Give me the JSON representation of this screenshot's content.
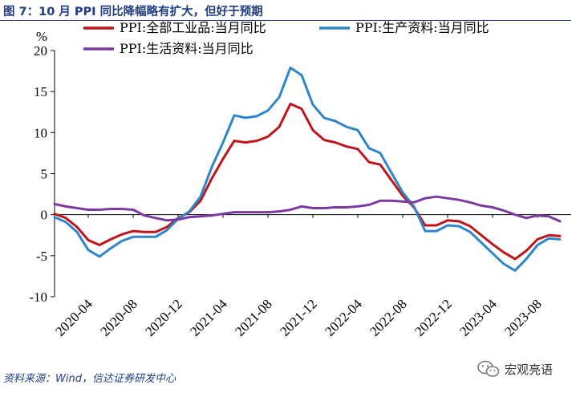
{
  "header": {
    "title": "图 7：10 月 PPI 同比降幅略有扩大，但好于预期"
  },
  "footer": {
    "source": "资料来源：Wind，信达证券研发中心",
    "watermark": "宏观亮语"
  },
  "chart_data": {
    "type": "line",
    "unit_label": "%",
    "ylim": [
      -10,
      20
    ],
    "yticks": [
      -10,
      -5,
      0,
      5,
      10,
      15,
      20
    ],
    "xlim": [
      "2020-01",
      "2023-11"
    ],
    "xticks": [
      "2020-04",
      "2020-08",
      "2020-12",
      "2021-04",
      "2021-08",
      "2021-12",
      "2022-04",
      "2022-08",
      "2022-12",
      "2023-04",
      "2023-08"
    ],
    "grid": false,
    "legend_position": "top",
    "series": [
      {
        "name": "PPI:全部工业品:当月同比",
        "color": "#c0141c",
        "x": [
          "2020-01",
          "2020-02",
          "2020-03",
          "2020-04",
          "2020-05",
          "2020-06",
          "2020-07",
          "2020-08",
          "2020-09",
          "2020-10",
          "2020-11",
          "2020-12",
          "2021-01",
          "2021-02",
          "2021-03",
          "2021-04",
          "2021-05",
          "2021-06",
          "2021-07",
          "2021-08",
          "2021-09",
          "2021-10",
          "2021-11",
          "2021-12",
          "2022-01",
          "2022-02",
          "2022-03",
          "2022-04",
          "2022-05",
          "2022-06",
          "2022-07",
          "2022-08",
          "2022-09",
          "2022-10",
          "2022-11",
          "2022-12",
          "2023-01",
          "2023-02",
          "2023-03",
          "2023-04",
          "2023-05",
          "2023-06",
          "2023-07",
          "2023-08",
          "2023-09",
          "2023-10"
        ],
        "values": [
          0.1,
          -0.4,
          -1.5,
          -3.1,
          -3.7,
          -3.0,
          -2.4,
          -2.0,
          -2.1,
          -2.1,
          -1.5,
          -0.4,
          0.3,
          1.7,
          4.4,
          6.8,
          9.0,
          8.8,
          9.0,
          9.5,
          10.7,
          13.5,
          12.9,
          10.3,
          9.1,
          8.8,
          8.3,
          8.0,
          6.4,
          6.1,
          4.2,
          2.3,
          0.9,
          -1.3,
          -1.3,
          -0.7,
          -0.8,
          -1.4,
          -2.5,
          -3.6,
          -4.6,
          -5.4,
          -4.4,
          -3.0,
          -2.5,
          -2.6
        ]
      },
      {
        "name": "PPI:生产资料:当月同比",
        "color": "#2e86c8",
        "x": [
          "2020-01",
          "2020-02",
          "2020-03",
          "2020-04",
          "2020-05",
          "2020-06",
          "2020-07",
          "2020-08",
          "2020-09",
          "2020-10",
          "2020-11",
          "2020-12",
          "2021-01",
          "2021-02",
          "2021-03",
          "2021-04",
          "2021-05",
          "2021-06",
          "2021-07",
          "2021-08",
          "2021-09",
          "2021-10",
          "2021-11",
          "2021-12",
          "2022-01",
          "2022-02",
          "2022-03",
          "2022-04",
          "2022-05",
          "2022-06",
          "2022-07",
          "2022-08",
          "2022-09",
          "2022-10",
          "2022-11",
          "2022-12",
          "2023-01",
          "2023-02",
          "2023-03",
          "2023-04",
          "2023-05",
          "2023-06",
          "2023-07",
          "2023-08",
          "2023-09",
          "2023-10"
        ],
        "values": [
          -0.3,
          -0.9,
          -2.1,
          -4.3,
          -5.1,
          -4.1,
          -3.2,
          -2.7,
          -2.7,
          -2.7,
          -1.9,
          -0.5,
          0.4,
          2.2,
          5.8,
          8.8,
          12.1,
          11.8,
          12.0,
          12.7,
          14.3,
          17.9,
          17.0,
          13.4,
          11.8,
          11.4,
          10.7,
          10.3,
          8.1,
          7.5,
          5.1,
          2.7,
          1.0,
          -2.0,
          -2.0,
          -1.3,
          -1.4,
          -2.1,
          -3.4,
          -4.7,
          -6.0,
          -6.8,
          -5.4,
          -3.7,
          -2.9,
          -3.0
        ]
      },
      {
        "name": "PPI:生活资料:当月同比",
        "color": "#7a3aa0",
        "x": [
          "2020-01",
          "2020-02",
          "2020-03",
          "2020-04",
          "2020-05",
          "2020-06",
          "2020-07",
          "2020-08",
          "2020-09",
          "2020-10",
          "2020-11",
          "2020-12",
          "2021-01",
          "2021-02",
          "2021-03",
          "2021-04",
          "2021-05",
          "2021-06",
          "2021-07",
          "2021-08",
          "2021-09",
          "2021-10",
          "2021-11",
          "2021-12",
          "2022-01",
          "2022-02",
          "2022-03",
          "2022-04",
          "2022-05",
          "2022-06",
          "2022-07",
          "2022-08",
          "2022-09",
          "2022-10",
          "2022-11",
          "2022-12",
          "2023-01",
          "2023-02",
          "2023-03",
          "2023-04",
          "2023-05",
          "2023-06",
          "2023-07",
          "2023-08",
          "2023-09",
          "2023-10"
        ],
        "values": [
          1.3,
          1.0,
          0.8,
          0.6,
          0.6,
          0.7,
          0.7,
          0.6,
          -0.1,
          -0.4,
          -0.7,
          -0.6,
          -0.3,
          -0.2,
          -0.1,
          0.1,
          0.3,
          0.3,
          0.3,
          0.3,
          0.4,
          0.6,
          1.0,
          0.8,
          0.8,
          0.9,
          0.9,
          1.0,
          1.2,
          1.7,
          1.7,
          1.6,
          1.5,
          2.0,
          2.2,
          2.0,
          1.8,
          1.5,
          1.1,
          0.9,
          0.5,
          0.0,
          -0.4,
          -0.1,
          -0.2,
          -0.8
        ]
      }
    ]
  }
}
